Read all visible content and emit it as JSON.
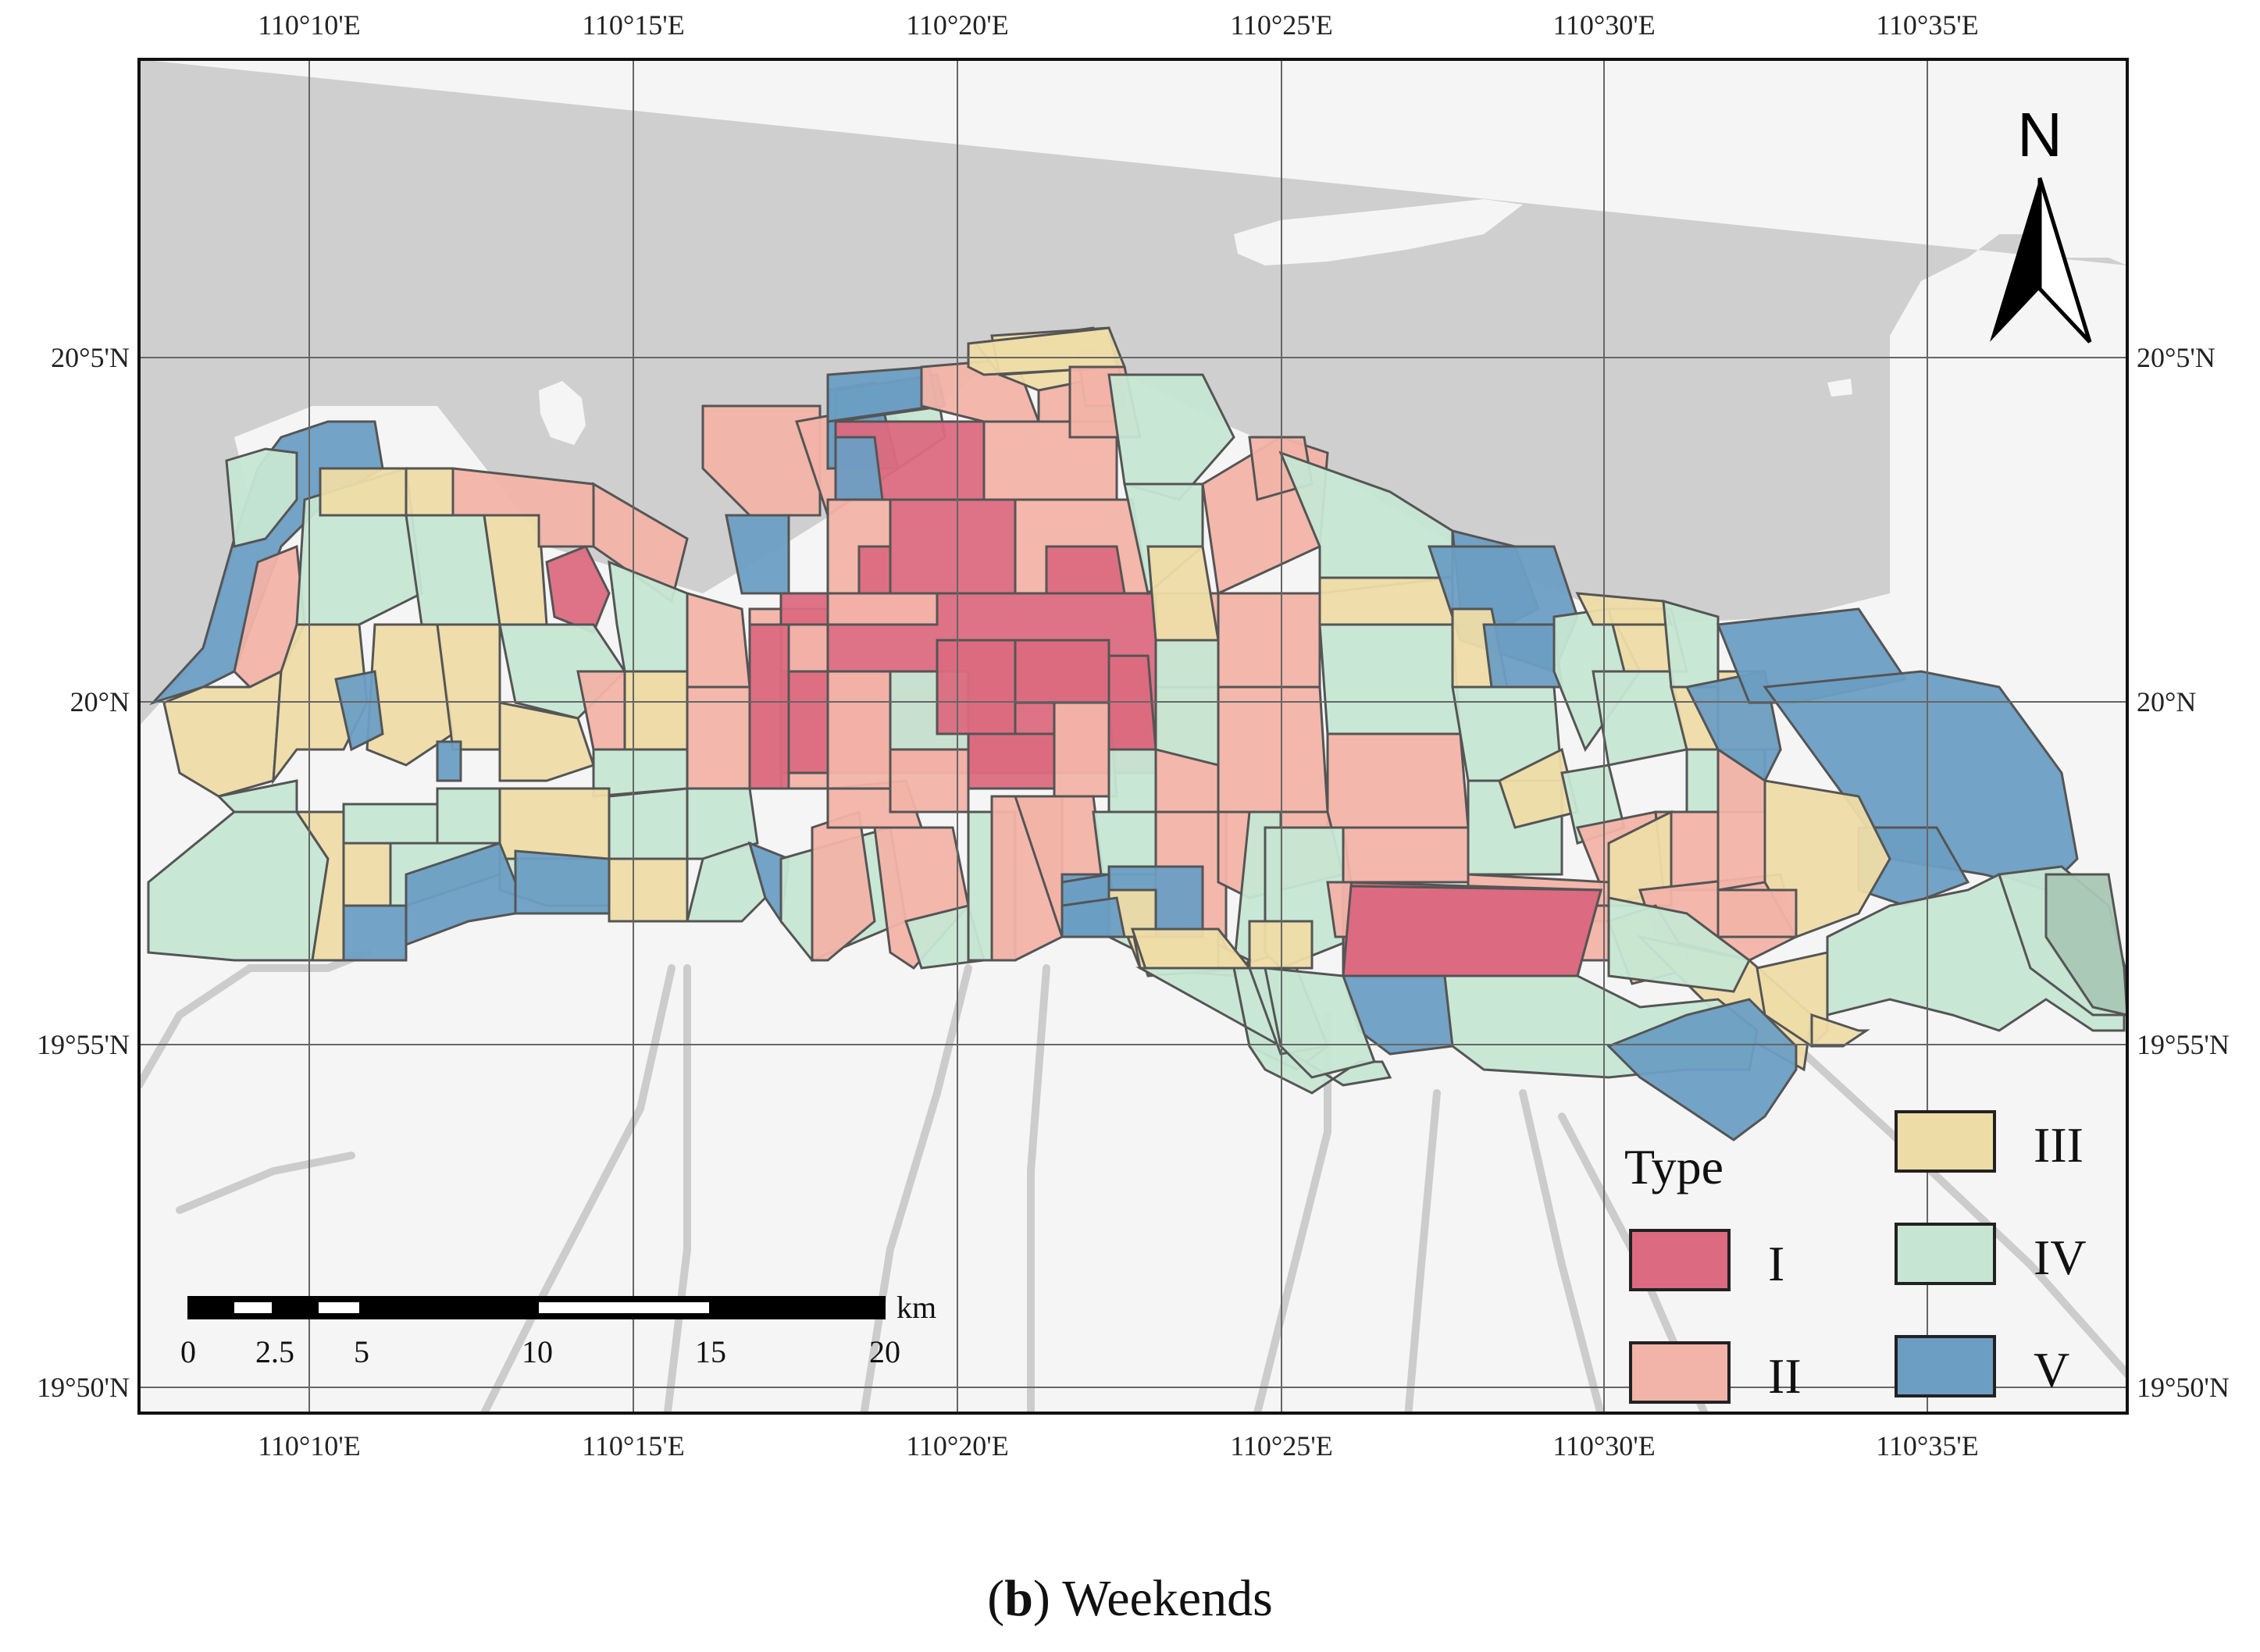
{
  "longitude_labels": [
    "110°10'E",
    "110°15'E",
    "110°20'E",
    "110°25'E",
    "110°30'E",
    "110°35'E"
  ],
  "latitude_labels": [
    "20°5'N",
    "20°N",
    "19°55'N",
    "19°50'N"
  ],
  "north_arrow": {
    "label": "N",
    "icon": "north-arrow-icon"
  },
  "scale_bar": {
    "unit": "km",
    "ticks": [
      "0",
      "2.5",
      "5",
      "10",
      "15",
      "20"
    ]
  },
  "legend": {
    "title": "Type",
    "items": [
      {
        "label": "I",
        "color": "#dc6a80"
      },
      {
        "label": "II",
        "color": "#f2b3a8"
      },
      {
        "label": "III",
        "color": "#eedca6"
      },
      {
        "label": "IV",
        "color": "#c6e6d3"
      },
      {
        "label": "V",
        "color": "#6c9ec3"
      }
    ]
  },
  "map_colors": {
    "sea": "#cfcfcf",
    "land": "#f5f5f5",
    "roads": "#cccccc"
  },
  "caption": {
    "letter": "b",
    "text": ") Weekends",
    "open": "("
  }
}
